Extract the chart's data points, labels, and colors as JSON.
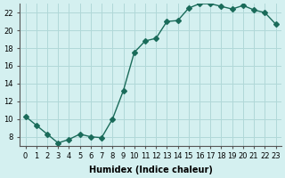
{
  "x": [
    0,
    1,
    2,
    3,
    4,
    5,
    6,
    7,
    8,
    9,
    10,
    11,
    12,
    13,
    14,
    15,
    16,
    17,
    18,
    19,
    20,
    21,
    22,
    23
  ],
  "y": [
    10.3,
    9.3,
    8.3,
    7.3,
    7.7,
    8.3,
    8.0,
    7.9,
    10.0,
    13.2,
    17.5,
    18.8,
    19.1,
    21.0,
    21.1,
    22.5,
    23.0,
    23.0,
    22.7,
    22.4,
    22.8,
    22.3,
    22.0,
    20.7
  ],
  "line_color": "#1a6b5a",
  "marker": "D",
  "marker_size": 3,
  "bg_color": "#d4f0f0",
  "grid_color": "#b0d8d8",
  "xlabel": "Humidex (Indice chaleur)",
  "xlim": [
    -0.5,
    23.5
  ],
  "ylim": [
    7,
    23
  ],
  "xticks": [
    0,
    1,
    2,
    3,
    4,
    5,
    6,
    7,
    8,
    9,
    10,
    11,
    12,
    13,
    14,
    15,
    16,
    17,
    18,
    19,
    20,
    21,
    22,
    23
  ],
  "yticks": [
    8,
    10,
    12,
    14,
    16,
    18,
    20,
    22
  ],
  "label_fontsize": 7,
  "tick_fontsize": 6
}
